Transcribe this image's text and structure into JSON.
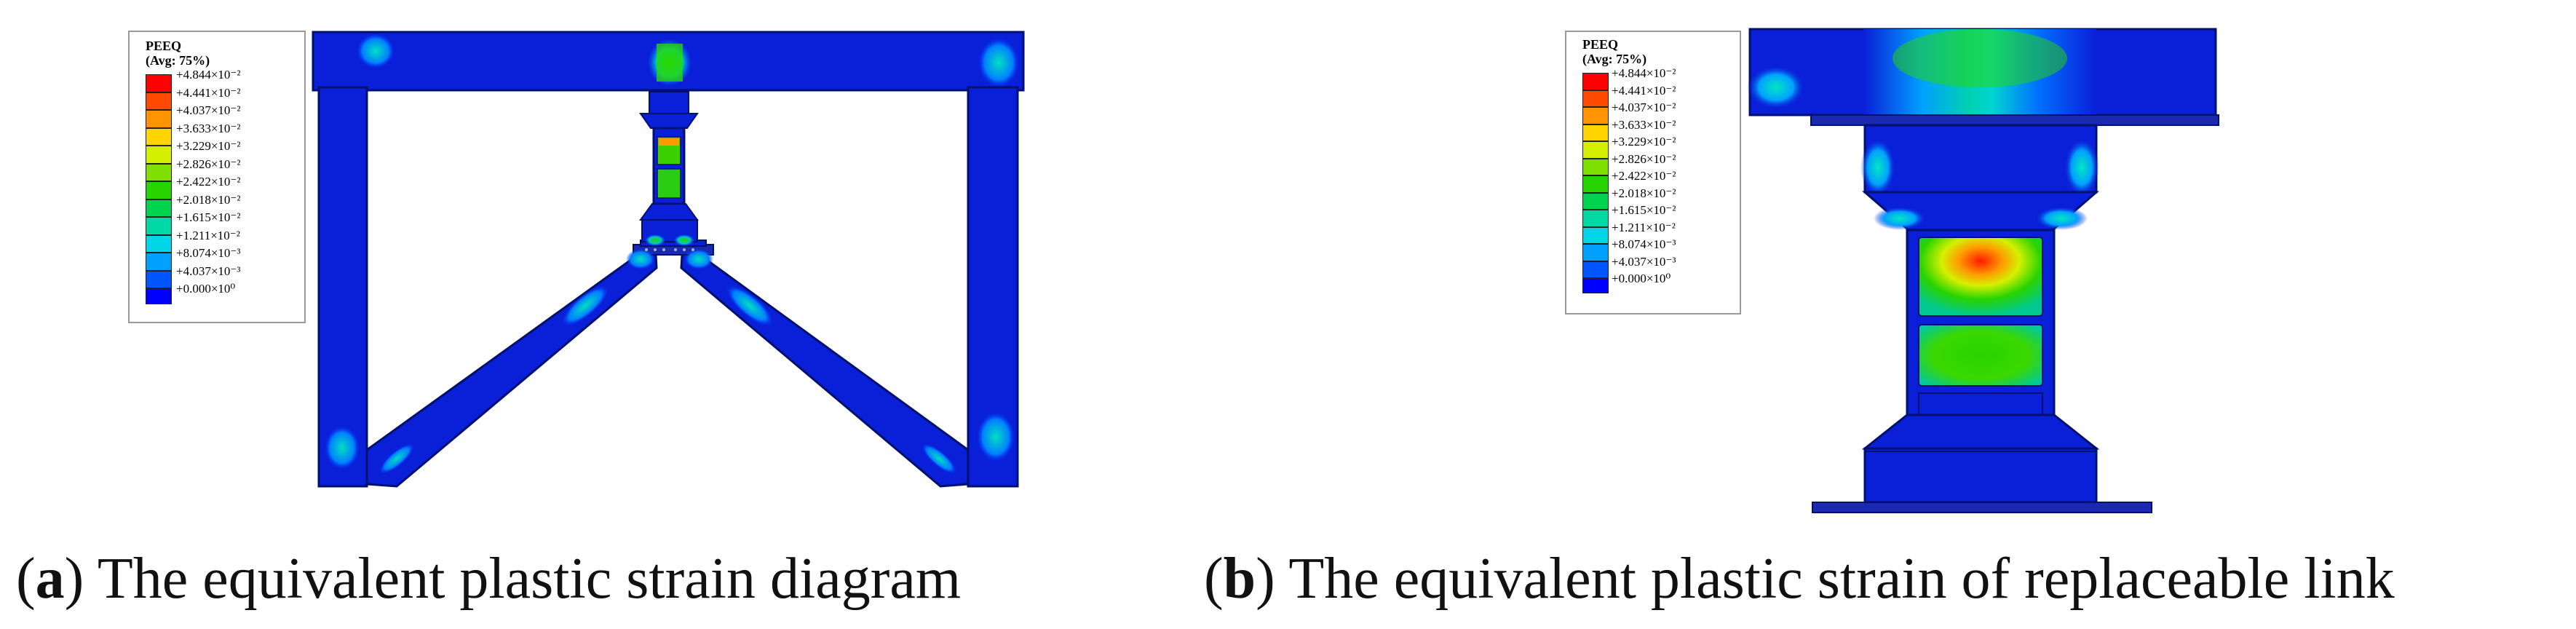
{
  "legend": {
    "title_line1": "PEEQ",
    "title_line2": "(Avg: 75%)",
    "entries": [
      {
        "label": "+4.844×10⁻²",
        "color": "#ff0000"
      },
      {
        "label": "+4.441×10⁻²",
        "color": "#ff4a00"
      },
      {
        "label": "+4.037×10⁻²",
        "color": "#ff9400"
      },
      {
        "label": "+3.633×10⁻²",
        "color": "#ffd400"
      },
      {
        "label": "+3.229×10⁻²",
        "color": "#d4f000"
      },
      {
        "label": "+2.826×10⁻²",
        "color": "#7fe000"
      },
      {
        "label": "+2.422×10⁻²",
        "color": "#28d400"
      },
      {
        "label": "+2.018×10⁻²",
        "color": "#00d34e"
      },
      {
        "label": "+1.615×10⁻²",
        "color": "#00d9a4"
      },
      {
        "label": "+1.211×10⁻²",
        "color": "#00d6e6"
      },
      {
        "label": "+8.074×10⁻³",
        "color": "#00a0ff"
      },
      {
        "label": "+4.037×10⁻³",
        "color": "#0055ff"
      },
      {
        "label": "+0.000×10⁰",
        "color": "#0000ff"
      }
    ]
  },
  "captions": {
    "a_letter": "a",
    "a_text": " The equivalent plastic strain diagram",
    "b_letter": "b",
    "b_text": " The equivalent plastic strain of replaceable link"
  }
}
